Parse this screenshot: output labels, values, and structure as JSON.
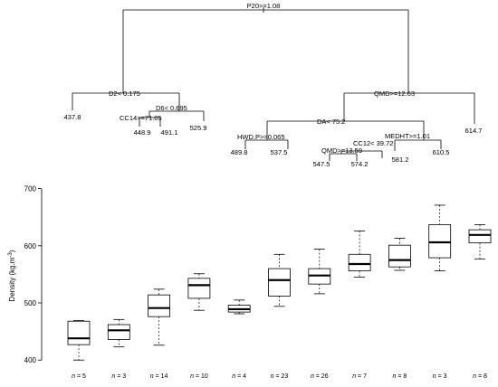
{
  "chart_data": [
    {
      "type": "tree",
      "splits": [
        {
          "id": "root",
          "label": "P20>=1.08"
        },
        {
          "id": "d2",
          "label": "D2< 0.175"
        },
        {
          "id": "d6",
          "label": "D6< 0.695"
        },
        {
          "id": "cc14",
          "label": "CC14>=71.05"
        },
        {
          "id": "qmd",
          "label": "QMD>=12.63"
        },
        {
          "id": "da",
          "label": "DA< 75.2"
        },
        {
          "id": "hwd",
          "label": "HWD.P>=0.065"
        },
        {
          "id": "medht",
          "label": "MEDHT>=1.01"
        },
        {
          "id": "cc12",
          "label": "CC12< 39.72"
        },
        {
          "id": "qmd2",
          "label": "QMD>=13.59"
        }
      ],
      "leaves": [
        "437.8",
        "448.9",
        "491.1",
        "525.9",
        "489.8",
        "537.5",
        "547.5",
        "574.2",
        "581.2",
        "610.5",
        "614.7"
      ]
    },
    {
      "type": "box",
      "ylabel": "Density (kg.m-3)",
      "ylim": [
        385,
        712
      ],
      "yticks": [
        400,
        500,
        600,
        700
      ],
      "groups": [
        {
          "n_label": "n = 5",
          "min": 400,
          "q1": 427,
          "median": 438,
          "q3": 468,
          "max": 469
        },
        {
          "n_label": "n = 3",
          "min": 423,
          "q1": 436,
          "median": 452,
          "q3": 462,
          "max": 471
        },
        {
          "n_label": "n = 14",
          "min": 426,
          "q1": 476,
          "median": 491,
          "q3": 514,
          "max": 524
        },
        {
          "n_label": "n = 10",
          "min": 487,
          "q1": 508,
          "median": 531,
          "q3": 543,
          "max": 551
        },
        {
          "n_label": "n = 4",
          "min": 481,
          "q1": 484,
          "median": 489,
          "q3": 496,
          "max": 505
        },
        {
          "n_label": "n = 23",
          "min": 494,
          "q1": 512,
          "median": 540,
          "q3": 560,
          "max": 585
        },
        {
          "n_label": "n = 26",
          "min": 516,
          "q1": 533,
          "median": 548,
          "q3": 560,
          "max": 594
        },
        {
          "n_label": "n = 7",
          "min": 545,
          "q1": 556,
          "median": 568,
          "q3": 585,
          "max": 626
        },
        {
          "n_label": "n = 8",
          "min": 557,
          "q1": 563,
          "median": 575,
          "q3": 601,
          "max": 613
        },
        {
          "n_label": "n = 3",
          "min": 556,
          "q1": 579,
          "median": 606,
          "q3": 637,
          "max": 671
        },
        {
          "n_label": "n = 8",
          "min": 577,
          "q1": 605,
          "median": 619,
          "q3": 628,
          "max": 637
        }
      ]
    }
  ]
}
